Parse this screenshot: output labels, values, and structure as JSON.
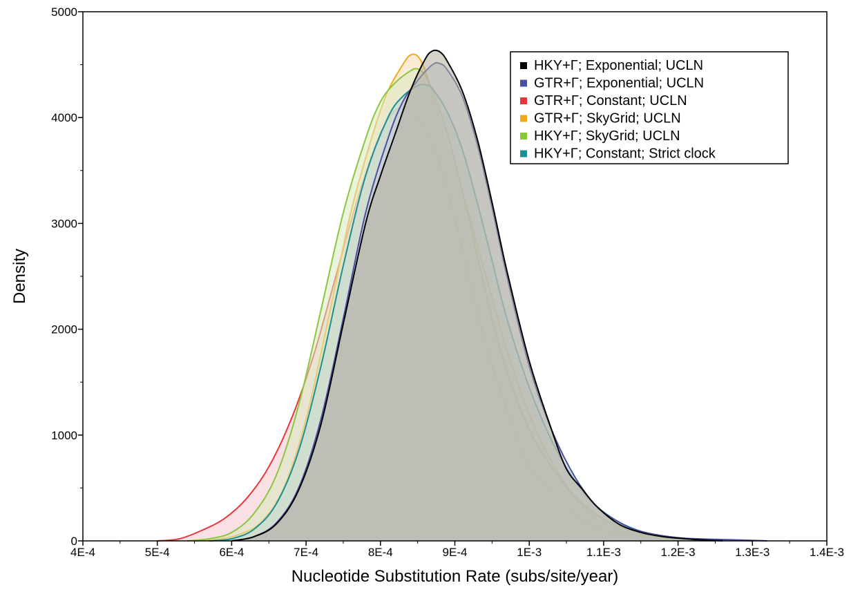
{
  "chart_data": {
    "type": "area",
    "title": "",
    "xlabel": "Nucleotide Substitution Rate (subs/site/year)",
    "ylabel": "Density",
    "xlim": [
      0.0004,
      0.0014
    ],
    "ylim": [
      0,
      5000
    ],
    "x_ticks": [
      0.0004,
      0.0005,
      0.0006,
      0.0007,
      0.0008,
      0.0009,
      0.001,
      0.0011,
      0.0012,
      0.0013,
      0.0014
    ],
    "x_tick_labels": [
      "4E-4",
      "5E-4",
      "6E-4",
      "7E-4",
      "8E-4",
      "9E-4",
      "1E-3",
      "1.1E-3",
      "1.2E-3",
      "1.3E-3",
      "1.4E-3"
    ],
    "y_ticks": [
      0,
      1000,
      2000,
      3000,
      4000,
      5000
    ],
    "y_tick_labels": [
      "0",
      "1000",
      "2000",
      "3000",
      "4000",
      "5000"
    ],
    "grid": false,
    "legend_position": "top-right",
    "series": [
      {
        "name": "GTR+Γ; Constant; UCLN",
        "color": "#e8383d",
        "fill": "#f4c7d0",
        "points": [
          [
            0.0005,
            0
          ],
          [
            0.00053,
            20
          ],
          [
            0.00056,
            100
          ],
          [
            0.00059,
            210
          ],
          [
            0.00062,
            400
          ],
          [
            0.00065,
            700
          ],
          [
            0.00068,
            1150
          ],
          [
            0.00071,
            1750
          ],
          [
            0.00074,
            2500
          ],
          [
            0.00077,
            3250
          ],
          [
            0.0008,
            3850
          ],
          [
            0.00082,
            4070
          ],
          [
            0.00083,
            4090
          ],
          [
            0.00084,
            4080
          ],
          [
            0.00086,
            3900
          ],
          [
            0.00088,
            3550
          ],
          [
            0.0009,
            3050
          ],
          [
            0.00092,
            2450
          ],
          [
            0.00094,
            1900
          ],
          [
            0.00096,
            1450
          ],
          [
            0.00098,
            1050
          ],
          [
            0.001,
            700
          ],
          [
            0.00103,
            450
          ],
          [
            0.00106,
            250
          ],
          [
            0.00109,
            130
          ],
          [
            0.00112,
            70
          ],
          [
            0.00116,
            35
          ],
          [
            0.0012,
            20
          ],
          [
            0.00124,
            10
          ],
          [
            0.00128,
            5
          ],
          [
            0.0013,
            0
          ]
        ]
      },
      {
        "name": "GTR+Γ; SkyGrid; UCLN",
        "color": "#f2a91c",
        "fill": "#f5ddb0",
        "points": [
          [
            0.00055,
            0
          ],
          [
            0.00058,
            15
          ],
          [
            0.00061,
            60
          ],
          [
            0.00064,
            180
          ],
          [
            0.00067,
            500
          ],
          [
            0.0007,
            1150
          ],
          [
            0.00073,
            2100
          ],
          [
            0.00076,
            3100
          ],
          [
            0.00079,
            3850
          ],
          [
            0.00081,
            4250
          ],
          [
            0.00083,
            4500
          ],
          [
            0.00084,
            4590
          ],
          [
            0.00085,
            4580
          ],
          [
            0.00086,
            4450
          ],
          [
            0.00087,
            4200
          ],
          [
            0.00089,
            3700
          ],
          [
            0.00091,
            3300
          ],
          [
            0.00093,
            2800
          ],
          [
            0.00095,
            2300
          ],
          [
            0.00097,
            1800
          ],
          [
            0.001,
            1200
          ],
          [
            0.00103,
            750
          ],
          [
            0.00106,
            420
          ],
          [
            0.00109,
            210
          ],
          [
            0.00112,
            110
          ],
          [
            0.00115,
            55
          ],
          [
            0.00118,
            25
          ],
          [
            0.00121,
            10
          ],
          [
            0.00125,
            0
          ]
        ]
      },
      {
        "name": "HKY+Γ; SkyGrid; UCLN",
        "color": "#8cc63f",
        "fill": "#d9e9c0",
        "points": [
          [
            0.00054,
            0
          ],
          [
            0.00057,
            20
          ],
          [
            0.0006,
            80
          ],
          [
            0.00063,
            260
          ],
          [
            0.00066,
            620
          ],
          [
            0.00069,
            1280
          ],
          [
            0.00072,
            2180
          ],
          [
            0.00075,
            3100
          ],
          [
            0.00078,
            3800
          ],
          [
            0.0008,
            4150
          ],
          [
            0.00082,
            4330
          ],
          [
            0.00084,
            4440
          ],
          [
            0.00085,
            4460
          ],
          [
            0.00086,
            4400
          ],
          [
            0.00087,
            4250
          ],
          [
            0.00089,
            3850
          ],
          [
            0.00091,
            3300
          ],
          [
            0.00093,
            2700
          ],
          [
            0.00095,
            2100
          ],
          [
            0.00097,
            1600
          ],
          [
            0.001,
            1050
          ],
          [
            0.00103,
            700
          ],
          [
            0.00106,
            430
          ],
          [
            0.00109,
            250
          ],
          [
            0.00112,
            140
          ],
          [
            0.00115,
            70
          ],
          [
            0.00118,
            30
          ],
          [
            0.00121,
            10
          ],
          [
            0.00124,
            0
          ]
        ]
      },
      {
        "name": "HKY+Γ; Constant; Strict clock",
        "color": "#1a8f96",
        "fill": "#bcd8d8",
        "points": [
          [
            0.00057,
            0
          ],
          [
            0.0006,
            20
          ],
          [
            0.00063,
            110
          ],
          [
            0.00066,
            350
          ],
          [
            0.00069,
            850
          ],
          [
            0.00072,
            1650
          ],
          [
            0.00075,
            2600
          ],
          [
            0.00078,
            3450
          ],
          [
            0.00081,
            4000
          ],
          [
            0.00083,
            4200
          ],
          [
            0.00085,
            4300
          ],
          [
            0.00086,
            4310
          ],
          [
            0.00087,
            4270
          ],
          [
            0.00089,
            4050
          ],
          [
            0.00091,
            3700
          ],
          [
            0.00093,
            3200
          ],
          [
            0.00095,
            2650
          ],
          [
            0.00097,
            2100
          ],
          [
            0.001,
            1450
          ],
          [
            0.00103,
            950
          ],
          [
            0.00106,
            580
          ],
          [
            0.00109,
            330
          ],
          [
            0.00112,
            180
          ],
          [
            0.00115,
            90
          ],
          [
            0.00118,
            40
          ],
          [
            0.00121,
            15
          ],
          [
            0.00125,
            0
          ]
        ]
      },
      {
        "name": "GTR+Γ; Exponential; UCLN",
        "color": "#4a4fa3",
        "fill": "#c4c6da",
        "points": [
          [
            0.0006,
            0
          ],
          [
            0.00063,
            40
          ],
          [
            0.00066,
            170
          ],
          [
            0.00069,
            500
          ],
          [
            0.00072,
            1150
          ],
          [
            0.00075,
            2100
          ],
          [
            0.00078,
            3100
          ],
          [
            0.00081,
            3800
          ],
          [
            0.00083,
            4150
          ],
          [
            0.00085,
            4350
          ],
          [
            0.00087,
            4500
          ],
          [
            0.00088,
            4510
          ],
          [
            0.00089,
            4450
          ],
          [
            0.00091,
            4200
          ],
          [
            0.00093,
            3750
          ],
          [
            0.00095,
            3150
          ],
          [
            0.00097,
            2500
          ],
          [
            0.001,
            1650
          ],
          [
            0.00103,
            1050
          ],
          [
            0.00106,
            620
          ],
          [
            0.00109,
            330
          ],
          [
            0.00112,
            180
          ],
          [
            0.00115,
            90
          ],
          [
            0.0012,
            30
          ],
          [
            0.00125,
            15
          ],
          [
            0.0013,
            5
          ],
          [
            0.00132,
            0
          ]
        ]
      },
      {
        "name": "HKY+Γ; Exponential; UCLN",
        "color": "#000000",
        "fill": "#b2ae9b",
        "points": [
          [
            0.0006,
            0
          ],
          [
            0.00063,
            40
          ],
          [
            0.00066,
            160
          ],
          [
            0.00069,
            480
          ],
          [
            0.00072,
            1100
          ],
          [
            0.00075,
            2050
          ],
          [
            0.00078,
            3000
          ],
          [
            0.0008,
            3450
          ],
          [
            0.00082,
            3850
          ],
          [
            0.00084,
            4250
          ],
          [
            0.00086,
            4550
          ],
          [
            0.00087,
            4630
          ],
          [
            0.00088,
            4620
          ],
          [
            0.00089,
            4530
          ],
          [
            0.00091,
            4250
          ],
          [
            0.00093,
            3800
          ],
          [
            0.00095,
            3200
          ],
          [
            0.00097,
            2550
          ],
          [
            0.001,
            1700
          ],
          [
            0.00103,
            1050
          ],
          [
            0.00105,
            680
          ],
          [
            0.00107,
            500
          ],
          [
            0.00109,
            330
          ],
          [
            0.00112,
            160
          ],
          [
            0.00115,
            80
          ],
          [
            0.00118,
            40
          ],
          [
            0.00122,
            15
          ],
          [
            0.00126,
            0
          ]
        ]
      }
    ],
    "legend_order": [
      5,
      4,
      0,
      1,
      2,
      3
    ]
  }
}
